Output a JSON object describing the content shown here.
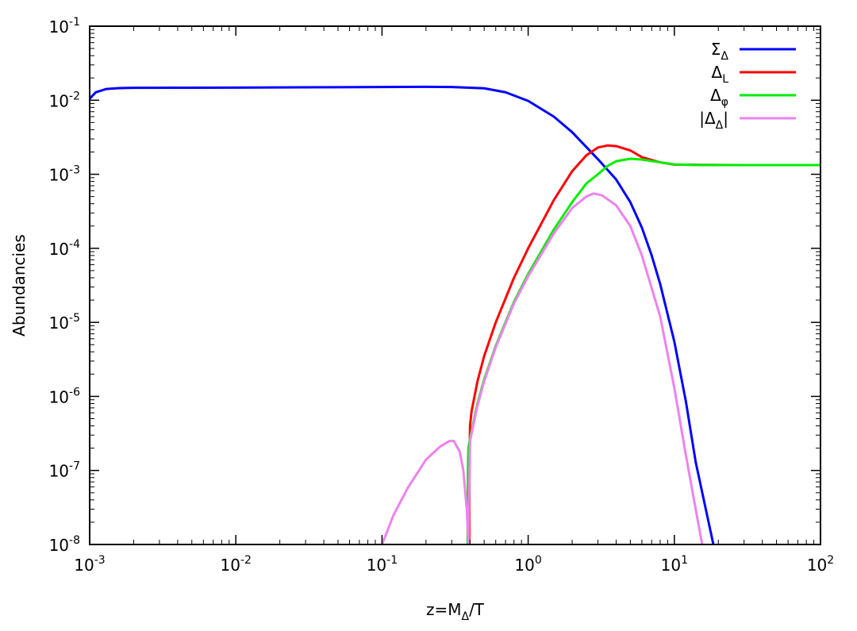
{
  "chart_data": {
    "type": "line",
    "title": "",
    "xlabel": {
      "base": "z=M",
      "sub": "Δ",
      "tail": "/T"
    },
    "ylabel": "Abundancies",
    "xscale": "log",
    "yscale": "log",
    "xlim": [
      0.001,
      100
    ],
    "ylim": [
      1e-08,
      0.1
    ],
    "grid": false,
    "legend_position": "top-right",
    "x_ticks": [
      {
        "base": "10",
        "exp": "-3",
        "value": 0.001
      },
      {
        "base": "10",
        "exp": "-2",
        "value": 0.01
      },
      {
        "base": "10",
        "exp": "-1",
        "value": 0.1
      },
      {
        "base": "10",
        "exp": "0",
        "value": 1
      },
      {
        "base": "10",
        "exp": "1",
        "value": 10
      },
      {
        "base": "10",
        "exp": "2",
        "value": 100
      }
    ],
    "y_ticks": [
      {
        "base": "10",
        "exp": "-8",
        "value": 1e-08
      },
      {
        "base": "10",
        "exp": "-7",
        "value": 1e-07
      },
      {
        "base": "10",
        "exp": "-6",
        "value": 1e-06
      },
      {
        "base": "10",
        "exp": "-5",
        "value": 1e-05
      },
      {
        "base": "10",
        "exp": "-4",
        "value": 0.0001
      },
      {
        "base": "10",
        "exp": "-3",
        "value": 0.001
      },
      {
        "base": "10",
        "exp": "-2",
        "value": 0.01
      },
      {
        "base": "10",
        "exp": "-1",
        "value": 0.1
      }
    ],
    "series": [
      {
        "name": {
          "pre": "Σ",
          "sub": "Δ",
          "post": ""
        },
        "color": "#0000ff",
        "points": [
          [
            0.001,
            0.0105
          ],
          [
            0.0011,
            0.0128
          ],
          [
            0.0013,
            0.0142
          ],
          [
            0.0016,
            0.0146
          ],
          [
            0.002,
            0.0147
          ],
          [
            0.01,
            0.0148
          ],
          [
            0.05,
            0.015
          ],
          [
            0.1,
            0.0151
          ],
          [
            0.2,
            0.0152
          ],
          [
            0.3,
            0.0151
          ],
          [
            0.5,
            0.0145
          ],
          [
            0.7,
            0.0128
          ],
          [
            1.0,
            0.0098
          ],
          [
            1.5,
            0.006
          ],
          [
            2.0,
            0.0037
          ],
          [
            3.0,
            0.0016
          ],
          [
            4.0,
            0.00085
          ],
          [
            5.0,
            0.00042
          ],
          [
            6.0,
            0.00019
          ],
          [
            7.0,
            8e-05
          ],
          [
            8.0,
            3.3e-05
          ],
          [
            10.0,
            5.5e-06
          ],
          [
            12.0,
            8.5e-07
          ],
          [
            14.0,
            1.3e-07
          ],
          [
            16.0,
            3.8e-08
          ],
          [
            18.5,
            1e-08
          ]
        ]
      },
      {
        "name": {
          "pre": "Δ",
          "sub": "L",
          "post": ""
        },
        "color": "#ff0000",
        "points": [
          [
            0.395,
            1e-08
          ],
          [
            0.397,
            1e-07
          ],
          [
            0.4,
            4e-07
          ],
          [
            0.41,
            6.3e-07
          ],
          [
            0.45,
            1.6e-06
          ],
          [
            0.5,
            3.5e-06
          ],
          [
            0.6,
            1e-05
          ],
          [
            0.8,
            4e-05
          ],
          [
            1.0,
            0.0001
          ],
          [
            1.5,
            0.00045
          ],
          [
            2.0,
            0.0011
          ],
          [
            2.5,
            0.0018
          ],
          [
            3.0,
            0.0023
          ],
          [
            3.5,
            0.00245
          ],
          [
            4.0,
            0.0024
          ],
          [
            5.0,
            0.0021
          ],
          [
            6.0,
            0.0017
          ],
          [
            8.0,
            0.00145
          ],
          [
            10.0,
            0.00135
          ],
          [
            15.0,
            0.00134
          ],
          [
            30.0,
            0.00133
          ],
          [
            100.0,
            0.00133
          ]
        ]
      },
      {
        "name": {
          "pre": "Δ",
          "sub": "φ",
          "post": ""
        },
        "color": "#00ee00",
        "points": [
          [
            0.385,
            1e-08
          ],
          [
            0.387,
            1e-07
          ],
          [
            0.39,
            2e-07
          ],
          [
            0.4,
            2.7e-07
          ],
          [
            0.45,
            8e-07
          ],
          [
            0.5,
            1.7e-06
          ],
          [
            0.6,
            4.8e-06
          ],
          [
            0.8,
            1.9e-05
          ],
          [
            1.0,
            4.5e-05
          ],
          [
            1.5,
            0.00018
          ],
          [
            2.0,
            0.00042
          ],
          [
            2.5,
            0.00075
          ],
          [
            3.0,
            0.001
          ],
          [
            3.5,
            0.0013
          ],
          [
            4.0,
            0.0015
          ],
          [
            5.0,
            0.00162
          ],
          [
            6.0,
            0.00158
          ],
          [
            8.0,
            0.00145
          ],
          [
            10.0,
            0.00136
          ],
          [
            15.0,
            0.00133
          ],
          [
            30.0,
            0.00133
          ],
          [
            100.0,
            0.00133
          ]
        ]
      },
      {
        "name": {
          "pre": "|Δ",
          "sub": "Δ",
          "post": "|"
        },
        "color": "#ee82ee",
        "points": [
          [
            0.1,
            1e-08
          ],
          [
            0.12,
            2.5e-08
          ],
          [
            0.15,
            5.8e-08
          ],
          [
            0.2,
            1.4e-07
          ],
          [
            0.25,
            2.1e-07
          ],
          [
            0.29,
            2.5e-07
          ],
          [
            0.31,
            2.5e-07
          ],
          [
            0.34,
            1.8e-07
          ],
          [
            0.36,
            1e-07
          ],
          [
            0.38,
            3e-08
          ],
          [
            0.39,
            1e-08
          ],
          [
            0.4,
            2.5e-07
          ],
          [
            0.45,
            7.5e-07
          ],
          [
            0.5,
            1.6e-06
          ],
          [
            0.6,
            4.6e-06
          ],
          [
            0.8,
            1.8e-05
          ],
          [
            1.0,
            4.2e-05
          ],
          [
            1.5,
            0.00016
          ],
          [
            2.0,
            0.00035
          ],
          [
            2.5,
            0.0005
          ],
          [
            2.8,
            0.00055
          ],
          [
            3.2,
            0.00052
          ],
          [
            4.0,
            0.00038
          ],
          [
            5.0,
            0.0002
          ],
          [
            6.0,
            8e-05
          ],
          [
            8.0,
            1.2e-05
          ],
          [
            10.0,
            1.3e-06
          ],
          [
            12.0,
            1.6e-07
          ],
          [
            14.0,
            3e-08
          ],
          [
            15.5,
            1e-08
          ]
        ]
      }
    ]
  }
}
